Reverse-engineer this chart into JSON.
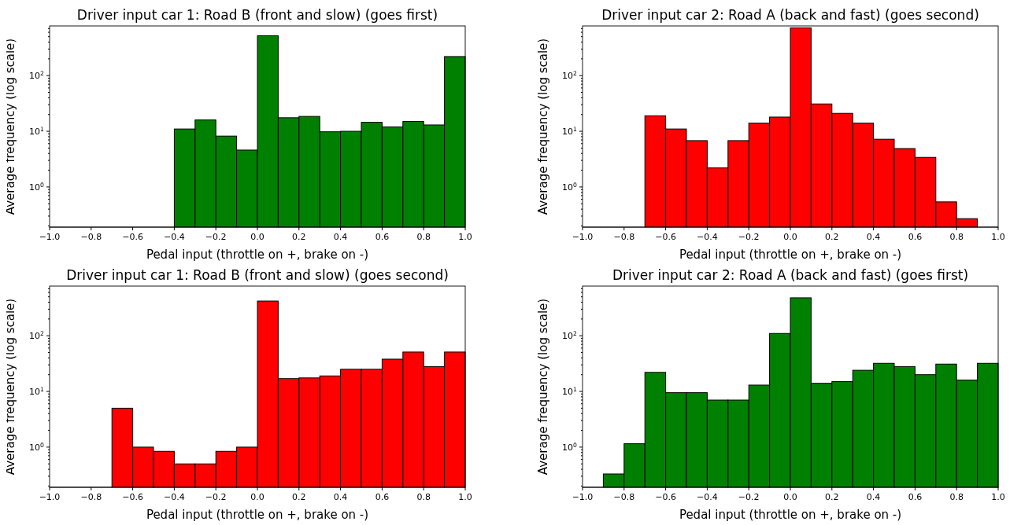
{
  "chart_data": [
    {
      "type": "histogram",
      "title": "Driver input car 1: Road B (front and slow) (goes first)",
      "xlabel": "Pedal input (throttle on +, brake on -)",
      "ylabel": "Average frequency (log scale)",
      "color": "#008000",
      "log": "y",
      "bins": [
        -1,
        -0.9,
        -0.8,
        -0.7,
        -0.6,
        -0.5,
        -0.4,
        -0.3,
        -0.2,
        -0.1,
        0,
        0.1,
        0.2,
        0.3,
        0.4,
        0.5,
        0.6,
        0.7,
        0.8,
        0.9,
        1
      ],
      "values": [
        null,
        null,
        null,
        null,
        null,
        null,
        11,
        16,
        8.2,
        4.6,
        520,
        17.5,
        18.5,
        9.8,
        10,
        14.5,
        12,
        15,
        13,
        220
      ],
      "xlim": [
        -1,
        1
      ],
      "xticks": [
        {
          "value": -1,
          "label": "−1.0"
        },
        {
          "value": -0.8,
          "label": "−0.8"
        },
        {
          "value": -0.6,
          "label": "−0.6"
        },
        {
          "value": -0.4,
          "label": "−0.4"
        },
        {
          "value": -0.2,
          "label": "−0.2"
        },
        {
          "value": 0,
          "label": "0.0"
        },
        {
          "value": 0.2,
          "label": "0.2"
        },
        {
          "value": 0.4,
          "label": "0.4"
        },
        {
          "value": 0.6,
          "label": "0.6"
        },
        {
          "value": 0.8,
          "label": "0.8"
        },
        {
          "value": 1,
          "label": "1.0"
        }
      ],
      "ylim": [
        0.19,
        780
      ],
      "yticks": [
        {
          "value": 0.2,
          "label": null
        },
        {
          "value": 0.3,
          "label": null
        },
        {
          "value": 0.4,
          "label": null
        },
        {
          "value": 0.5,
          "label": null
        },
        {
          "value": 0.6,
          "label": null
        },
        {
          "value": 0.7,
          "label": null
        },
        {
          "value": 0.8,
          "label": null
        },
        {
          "value": 0.9,
          "label": null
        },
        {
          "value": 1,
          "label": "10$^{0}$"
        },
        {
          "value": 2,
          "label": null
        },
        {
          "value": 3,
          "label": null
        },
        {
          "value": 4,
          "label": null
        },
        {
          "value": 5,
          "label": null
        },
        {
          "value": 6,
          "label": null
        },
        {
          "value": 7,
          "label": null
        },
        {
          "value": 8,
          "label": null
        },
        {
          "value": 9,
          "label": null
        },
        {
          "value": 10,
          "label": "10$^{1}$"
        },
        {
          "value": 20,
          "label": null
        },
        {
          "value": 30,
          "label": null
        },
        {
          "value": 40,
          "label": null
        },
        {
          "value": 50,
          "label": null
        },
        {
          "value": 60,
          "label": null
        },
        {
          "value": 70,
          "label": null
        },
        {
          "value": 80,
          "label": null
        },
        {
          "value": 90,
          "label": null
        },
        {
          "value": 100,
          "label": "10$^{2}$"
        },
        {
          "value": 200,
          "label": null
        },
        {
          "value": 300,
          "label": null
        },
        {
          "value": 400,
          "label": null
        },
        {
          "value": 500,
          "label": null
        },
        {
          "value": 600,
          "label": null
        },
        {
          "value": 700,
          "label": null
        }
      ]
    },
    {
      "type": "histogram",
      "title": "Driver input car 2: Road A (back and fast) (goes second)",
      "xlabel": "Pedal input (throttle on +, brake on -)",
      "ylabel": "Average frequency (log scale)",
      "color": "#ff0000",
      "log": "y",
      "bins": [
        -1,
        -0.9,
        -0.8,
        -0.7,
        -0.6,
        -0.5,
        -0.4,
        -0.3,
        -0.2,
        -0.1,
        0,
        0.1,
        0.2,
        0.3,
        0.4,
        0.5,
        0.6,
        0.7,
        0.8,
        0.9,
        1
      ],
      "values": [
        null,
        null,
        null,
        19,
        11,
        6.8,
        2.2,
        6.8,
        14,
        18,
        720,
        31,
        21,
        14,
        7.2,
        4.9,
        3.4,
        0.54,
        0.27,
        null
      ],
      "xlim": [
        -1,
        1
      ],
      "xticks": [
        {
          "value": -1,
          "label": "−1.0"
        },
        {
          "value": -0.8,
          "label": "−0.8"
        },
        {
          "value": -0.6,
          "label": "−0.6"
        },
        {
          "value": -0.4,
          "label": "−0.4"
        },
        {
          "value": -0.2,
          "label": "−0.2"
        },
        {
          "value": 0,
          "label": "0.0"
        },
        {
          "value": 0.2,
          "label": "0.2"
        },
        {
          "value": 0.4,
          "label": "0.4"
        },
        {
          "value": 0.6,
          "label": "0.6"
        },
        {
          "value": 0.8,
          "label": "0.8"
        },
        {
          "value": 1,
          "label": "1.0"
        }
      ],
      "ylim": [
        0.19,
        780
      ],
      "yticks": [
        {
          "value": 0.2,
          "label": null
        },
        {
          "value": 0.3,
          "label": null
        },
        {
          "value": 0.4,
          "label": null
        },
        {
          "value": 0.5,
          "label": null
        },
        {
          "value": 0.6,
          "label": null
        },
        {
          "value": 0.7,
          "label": null
        },
        {
          "value": 0.8,
          "label": null
        },
        {
          "value": 0.9,
          "label": null
        },
        {
          "value": 1,
          "label": "10$^{0}$"
        },
        {
          "value": 2,
          "label": null
        },
        {
          "value": 3,
          "label": null
        },
        {
          "value": 4,
          "label": null
        },
        {
          "value": 5,
          "label": null
        },
        {
          "value": 6,
          "label": null
        },
        {
          "value": 7,
          "label": null
        },
        {
          "value": 8,
          "label": null
        },
        {
          "value": 9,
          "label": null
        },
        {
          "value": 10,
          "label": "10$^{1}$"
        },
        {
          "value": 20,
          "label": null
        },
        {
          "value": 30,
          "label": null
        },
        {
          "value": 40,
          "label": null
        },
        {
          "value": 50,
          "label": null
        },
        {
          "value": 60,
          "label": null
        },
        {
          "value": 70,
          "label": null
        },
        {
          "value": 80,
          "label": null
        },
        {
          "value": 90,
          "label": null
        },
        {
          "value": 100,
          "label": "10$^{2}$"
        },
        {
          "value": 200,
          "label": null
        },
        {
          "value": 300,
          "label": null
        },
        {
          "value": 400,
          "label": null
        },
        {
          "value": 500,
          "label": null
        },
        {
          "value": 600,
          "label": null
        },
        {
          "value": 700,
          "label": null
        }
      ]
    },
    {
      "type": "histogram",
      "title": "Driver input car 1: Road B (front and slow) (goes second)",
      "xlabel": "Pedal input (throttle on +, brake on -)",
      "ylabel": "Average frequency (log scale)",
      "color": "#ff0000",
      "log": "y",
      "bins": [
        -1,
        -0.9,
        -0.8,
        -0.7,
        -0.6,
        -0.5,
        -0.4,
        -0.3,
        -0.2,
        -0.1,
        0,
        0.1,
        0.2,
        0.3,
        0.4,
        0.5,
        0.6,
        0.7,
        0.8,
        0.9,
        1
      ],
      "values": [
        null,
        null,
        null,
        5,
        1,
        0.84,
        0.5,
        0.5,
        0.84,
        1,
        420,
        17,
        17.5,
        19,
        25,
        25,
        38,
        51,
        28,
        51
      ],
      "xlim": [
        -1,
        1
      ],
      "xticks": [
        {
          "value": -1,
          "label": "−1.0"
        },
        {
          "value": -0.8,
          "label": "−0.8"
        },
        {
          "value": -0.6,
          "label": "−0.6"
        },
        {
          "value": -0.4,
          "label": "−0.4"
        },
        {
          "value": -0.2,
          "label": "−0.2"
        },
        {
          "value": 0,
          "label": "0.0"
        },
        {
          "value": 0.2,
          "label": "0.2"
        },
        {
          "value": 0.4,
          "label": "0.4"
        },
        {
          "value": 0.6,
          "label": "0.6"
        },
        {
          "value": 0.8,
          "label": "0.8"
        },
        {
          "value": 1,
          "label": "1.0"
        }
      ],
      "ylim": [
        0.19,
        780
      ],
      "yticks": [
        {
          "value": 0.2,
          "label": null
        },
        {
          "value": 0.3,
          "label": null
        },
        {
          "value": 0.4,
          "label": null
        },
        {
          "value": 0.5,
          "label": null
        },
        {
          "value": 0.6,
          "label": null
        },
        {
          "value": 0.7,
          "label": null
        },
        {
          "value": 0.8,
          "label": null
        },
        {
          "value": 0.9,
          "label": null
        },
        {
          "value": 1,
          "label": "10$^{0}$"
        },
        {
          "value": 2,
          "label": null
        },
        {
          "value": 3,
          "label": null
        },
        {
          "value": 4,
          "label": null
        },
        {
          "value": 5,
          "label": null
        },
        {
          "value": 6,
          "label": null
        },
        {
          "value": 7,
          "label": null
        },
        {
          "value": 8,
          "label": null
        },
        {
          "value": 9,
          "label": null
        },
        {
          "value": 10,
          "label": "10$^{1}$"
        },
        {
          "value": 20,
          "label": null
        },
        {
          "value": 30,
          "label": null
        },
        {
          "value": 40,
          "label": null
        },
        {
          "value": 50,
          "label": null
        },
        {
          "value": 60,
          "label": null
        },
        {
          "value": 70,
          "label": null
        },
        {
          "value": 80,
          "label": null
        },
        {
          "value": 90,
          "label": null
        },
        {
          "value": 100,
          "label": "10$^{2}$"
        },
        {
          "value": 200,
          "label": null
        },
        {
          "value": 300,
          "label": null
        },
        {
          "value": 400,
          "label": null
        },
        {
          "value": 500,
          "label": null
        },
        {
          "value": 600,
          "label": null
        },
        {
          "value": 700,
          "label": null
        }
      ]
    },
    {
      "type": "histogram",
      "title": "Driver input car 2: Road A (back and fast) (goes first)",
      "xlabel": "Pedal input (throttle on +, brake on -)",
      "ylabel": "Average frequency (log scale)",
      "color": "#008000",
      "log": "y",
      "bins": [
        -1,
        -0.9,
        -0.8,
        -0.7,
        -0.6,
        -0.5,
        -0.4,
        -0.3,
        -0.2,
        -0.1,
        0,
        0.1,
        0.2,
        0.3,
        0.4,
        0.5,
        0.6,
        0.7,
        0.8,
        0.9,
        1
      ],
      "values": [
        null,
        0.33,
        1.15,
        22,
        9.5,
        9.5,
        7,
        7,
        13,
        110,
        480,
        14,
        15,
        24,
        32,
        28,
        20,
        31,
        16,
        32
      ],
      "xlim": [
        -1,
        1
      ],
      "xticks": [
        {
          "value": -1,
          "label": "−1.0"
        },
        {
          "value": -0.8,
          "label": "−0.8"
        },
        {
          "value": -0.6,
          "label": "−0.6"
        },
        {
          "value": -0.4,
          "label": "−0.4"
        },
        {
          "value": -0.2,
          "label": "−0.2"
        },
        {
          "value": 0,
          "label": "0.0"
        },
        {
          "value": 0.2,
          "label": "0.2"
        },
        {
          "value": 0.4,
          "label": "0.4"
        },
        {
          "value": 0.6,
          "label": "0.6"
        },
        {
          "value": 0.8,
          "label": "0.8"
        },
        {
          "value": 1,
          "label": "1.0"
        }
      ],
      "ylim": [
        0.19,
        780
      ],
      "yticks": [
        {
          "value": 0.2,
          "label": null
        },
        {
          "value": 0.3,
          "label": null
        },
        {
          "value": 0.4,
          "label": null
        },
        {
          "value": 0.5,
          "label": null
        },
        {
          "value": 0.6,
          "label": null
        },
        {
          "value": 0.7,
          "label": null
        },
        {
          "value": 0.8,
          "label": null
        },
        {
          "value": 0.9,
          "label": null
        },
        {
          "value": 1,
          "label": "10$^{0}$"
        },
        {
          "value": 2,
          "label": null
        },
        {
          "value": 3,
          "label": null
        },
        {
          "value": 4,
          "label": null
        },
        {
          "value": 5,
          "label": null
        },
        {
          "value": 6,
          "label": null
        },
        {
          "value": 7,
          "label": null
        },
        {
          "value": 8,
          "label": null
        },
        {
          "value": 9,
          "label": null
        },
        {
          "value": 10,
          "label": "10$^{1}$"
        },
        {
          "value": 20,
          "label": null
        },
        {
          "value": 30,
          "label": null
        },
        {
          "value": 40,
          "label": null
        },
        {
          "value": 50,
          "label": null
        },
        {
          "value": 60,
          "label": null
        },
        {
          "value": 70,
          "label": null
        },
        {
          "value": 80,
          "label": null
        },
        {
          "value": 90,
          "label": null
        },
        {
          "value": 100,
          "label": "10$^{2}$"
        },
        {
          "value": 200,
          "label": null
        },
        {
          "value": 300,
          "label": null
        },
        {
          "value": 400,
          "label": null
        },
        {
          "value": 500,
          "label": null
        },
        {
          "value": 600,
          "label": null
        },
        {
          "value": 700,
          "label": null
        }
      ]
    }
  ]
}
